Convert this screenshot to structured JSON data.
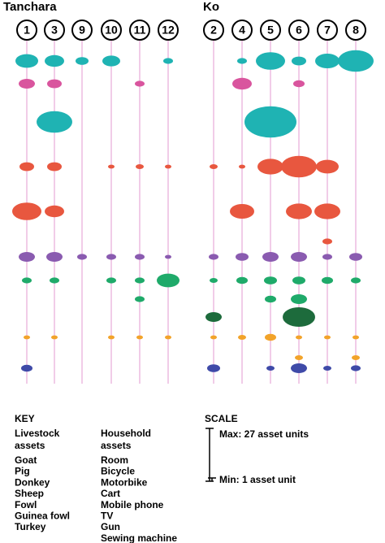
{
  "groups": [
    {
      "title": "Tanchara",
      "households": [
        "1",
        "3",
        "9",
        "10",
        "11",
        "12"
      ]
    },
    {
      "title": "Ko",
      "households": [
        "2",
        "4",
        "5",
        "6",
        "7",
        "8"
      ]
    }
  ],
  "key": {
    "title": "KEY",
    "livestock": {
      "heading": "Livestock assets",
      "items": [
        "Goat",
        "Pig",
        "Donkey",
        "Sheep",
        "Fowl",
        "Guinea fowl",
        "Turkey"
      ]
    },
    "household": {
      "heading": "Household assets",
      "items": [
        "Room",
        "Bicycle",
        "Motorbike",
        "Cart",
        "Mobile phone",
        "TV",
        "Gun",
        "Sewing machine"
      ]
    }
  },
  "scale": {
    "title": "SCALE",
    "max": "Max: 27 asset units",
    "min": "Min: 1 asset unit"
  }
}
